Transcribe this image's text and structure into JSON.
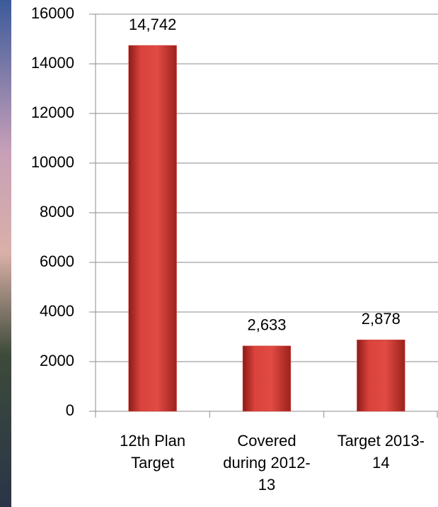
{
  "chart_data": {
    "type": "bar",
    "categories": [
      "12th Plan Target",
      "Covered during 2012-13",
      "Target 2013-14"
    ],
    "values": [
      14742,
      2633,
      2878
    ],
    "value_labels": [
      "14,742",
      "2,633",
      "2,878"
    ],
    "color": "#d43f38",
    "ylim": [
      0,
      16000
    ],
    "yticks": [
      0,
      2000,
      4000,
      6000,
      8000,
      10000,
      12000,
      14000,
      16000
    ],
    "grid": true
  }
}
